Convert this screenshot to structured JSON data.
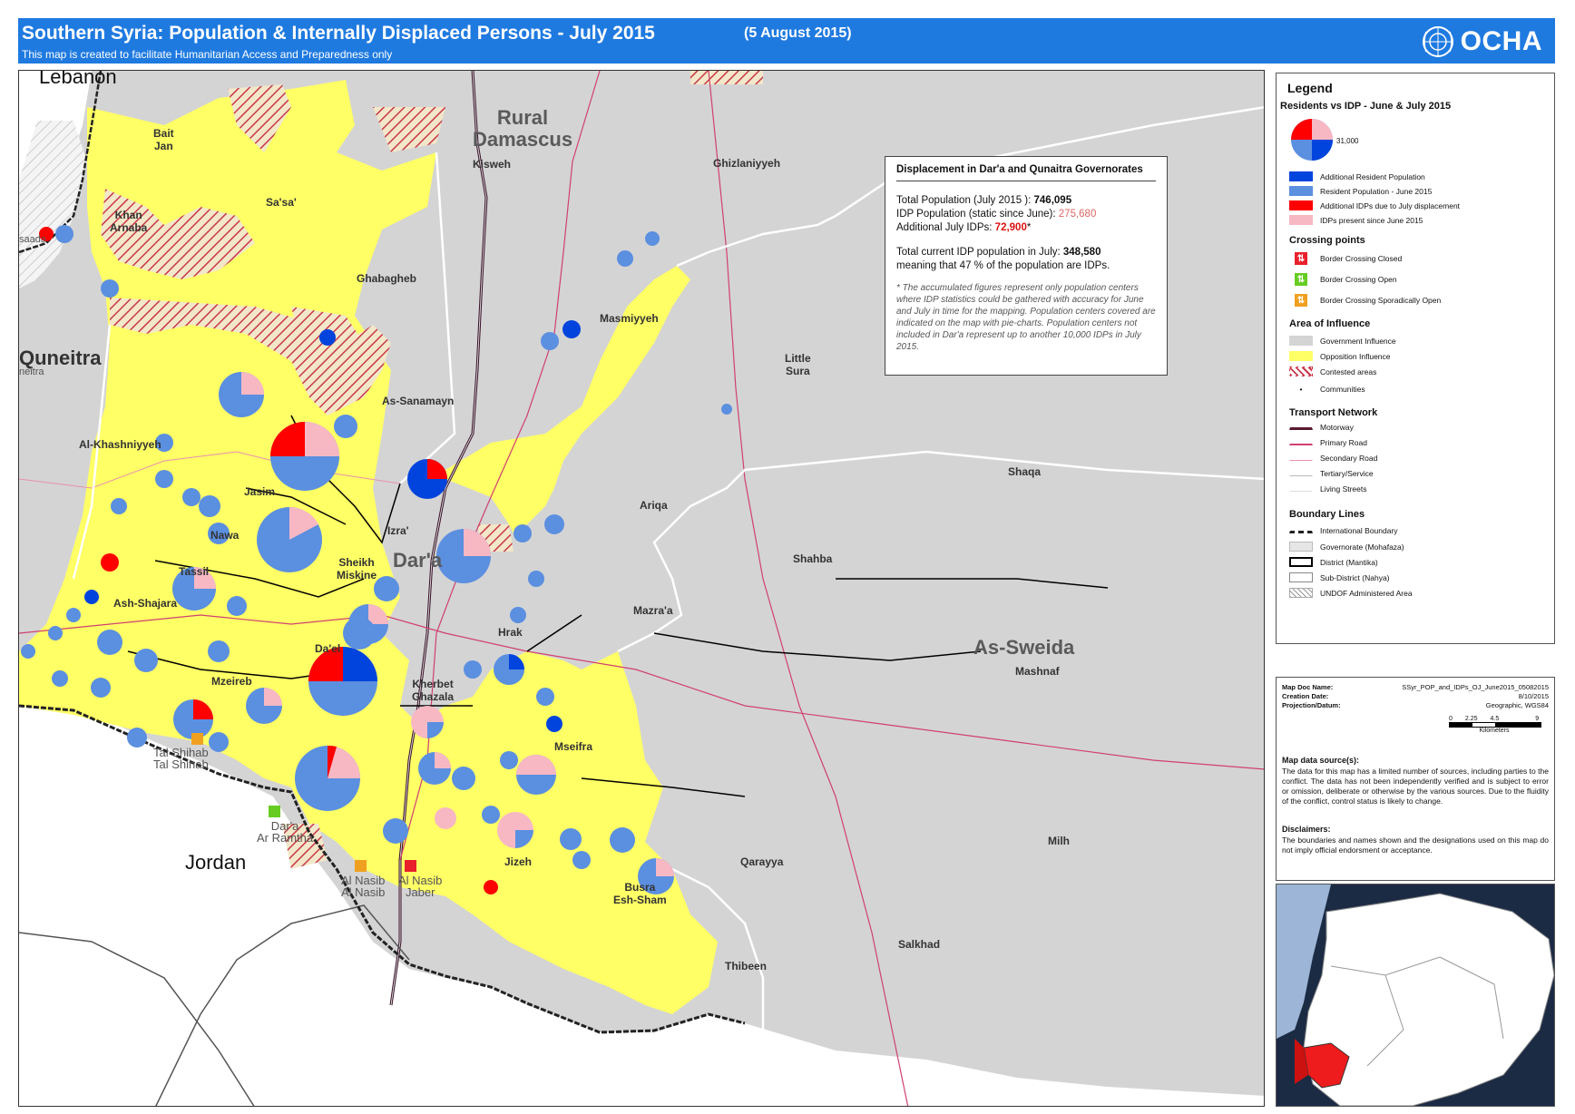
{
  "header": {
    "title": "Southern Syria: Population & Internally Displaced Persons - July 2015",
    "date": "(5 August 2015)",
    "subtitle": "This map is created to facilitate Humanitarian Access and Preparedness only",
    "org": "OCHA"
  },
  "map": {
    "governorates": {
      "rural_damascus": "Rural\nDamascus",
      "quneitra": "Quneitra",
      "daraa": "Dar'a",
      "as_sweida": "As-Sweida"
    },
    "countries": {
      "lebanon": "Lebanon",
      "jordan": "Jordan"
    },
    "districts": [
      "Bait\nJan",
      "Sa'sa'",
      "Khan\nArnaba",
      "Ghabagheb",
      "As-Sanamayn",
      "Masmiyyeh",
      "Al-Khashniyyeh",
      "Jasim",
      "Nawa",
      "Sheikh\nMiskine",
      "Izra'",
      "Tassil",
      "Ash-Shajara",
      "Da'el",
      "Mzeireb",
      "Hrak",
      "Kherbet\nGhazala",
      "Mseifra",
      "Jizeh",
      "Busra\nEsh-Sham",
      "Ariqa",
      "Shahba",
      "Mazra'a",
      "Ghizlaniyyeh",
      "Little\nSura",
      "Shaqa",
      "Mashnaf",
      "Qarayya",
      "Salkhad",
      "Milh",
      "Thibeen",
      "Kisweh",
      "Quneitra"
    ],
    "crossings": {
      "tal_shihab": "Tal Shihab\nTal Shihab",
      "daraa_ramtha": "Dar'a\nAr Ramtha",
      "al_nasib": "Al Nasib\nAl Nasib",
      "nasib_jaber": "Al Nasib\nJaber"
    },
    "edge_labels": {
      "saada": "saada",
      "neitra": "neitra"
    }
  },
  "displacement_box": {
    "title": "Displacement  in  Dar'a and Qunaitra Governorates",
    "total_population_label": "Total Population  (July  2015 ): ",
    "total_population_value": "746,095",
    "idp_population_label": "IDP Population (static since June): ",
    "idp_population_value": "275,680",
    "additional_label": "Additional July IDPs:   ",
    "additional_value": "72,900",
    "additional_suffix": "*",
    "total_current_label": "Total current IDP population in July:   ",
    "total_current_value": "348,580",
    "meaning_text": " meaning that 47 % of the population are IDPs.",
    "note": "* The accumulated figures represent only population centers where IDP statistics could be gathered with accuracy for June and July in time for the mapping. Population centers covered are indicated on the map with pie-charts. Population centers not included in Dar'a represent up to another 10,000 IDPs in July 2015."
  },
  "legend": {
    "title": "Legend",
    "subtitle": "Residents vs IDP - June & July 2015",
    "pie_value_label": "31,000",
    "pie_items": [
      {
        "label": "Additional Resident Population",
        "color": "#0044dd"
      },
      {
        "label": "Resident Population - June 2015",
        "color": "#5b8fe0"
      },
      {
        "label": "Additional IDPs due to July displacement",
        "color": "#ff0000"
      },
      {
        "label": "IDPs present since June 2015",
        "color": "#f7b8c4"
      }
    ],
    "crossing_title": "Crossing points",
    "crossings": [
      {
        "label": "Border Crossing Closed",
        "color": "#e8202a"
      },
      {
        "label": "Border Crossing Open",
        "color": "#66cc22"
      },
      {
        "label": "Border Crossing Sporadically Open",
        "color": "#f0a020"
      }
    ],
    "area_title": "Area of Influence",
    "areas": [
      {
        "label": "Government Influence",
        "color": "#d4d4d4"
      },
      {
        "label": "Opposition Influence",
        "color": "#ffff66"
      },
      {
        "label": "Contested areas",
        "color": "#c8384a"
      }
    ],
    "communities_label": "Communities",
    "transport_title": "Transport Network",
    "transport": [
      {
        "label": "Motorway",
        "color": "#5a1a30"
      },
      {
        "label": "Primary Road",
        "color": "#d04070"
      },
      {
        "label": "Secondary Road",
        "color": "#e890b0"
      },
      {
        "label": "Tertiary/Service",
        "color": "#bbbbbb"
      },
      {
        "label": "Living Streets",
        "color": "#dddddd"
      }
    ],
    "boundary_title": "Boundary Lines",
    "boundaries": [
      {
        "label": "International Boundary"
      },
      {
        "label": "Governorate (Mohafaza)"
      },
      {
        "label": "District (Mantika)"
      },
      {
        "label": "Sub-District (Nahya)"
      },
      {
        "label": "UNDOF Administered Area"
      }
    ]
  },
  "info": {
    "meta": [
      {
        "key": "Map Doc Name:",
        "value": "SSyr_POP_and_IDPs_OJ_June2015_05082015"
      },
      {
        "key": "Creation Date:",
        "value": "8/10/2015"
      },
      {
        "key": "Projection/Datum:",
        "value": "Geographic, WGS84"
      }
    ],
    "scale_ticks": [
      "0",
      "2.25",
      "4.5",
      "9"
    ],
    "scale_unit": "Kilometers",
    "sources_title": "Map data source(s):",
    "sources_text": "The data for this map has a limited number of sources, including parties to the conflict. The data has not been independently verified and is subject to error or omission, deliberate or otherwise by the various sources. Due to the fluidity of the conflict, control status is likely to change.",
    "disclaimer_title": "Disclaimers:",
    "disclaimer_text": "The boundaries and names shown and the designations used on this map do not imply official endorsment or acceptance."
  }
}
